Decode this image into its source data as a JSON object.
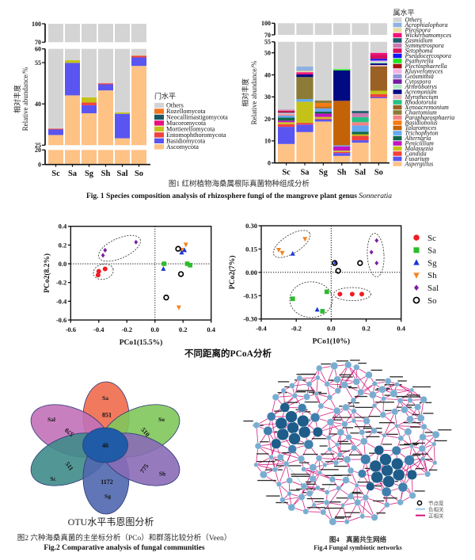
{
  "figure1": {
    "caption_cn": "图1  红树植物海桑属根际真菌物种组成分析",
    "caption_en": "Fig. 1  Species composition analysis of rhizosphere fungi of the mangrove plant genus ",
    "caption_en_genus": "Sonneratia"
  },
  "figure2": {
    "pcoa_title": "不同距离的PCoA分析",
    "venn_title": "OTU水平韦恩图分析",
    "caption_cn": "图2 六种海桑真菌的主坐标分析（PCo）和群落比较分析（Veen）",
    "caption_en": "Fig.2  Comparative analysis of fungal communities",
    "venn": {
      "core_otus": "46",
      "core_color": "#1f5ba6",
      "petals": [
        {
          "sample": "Sa",
          "unique_otus": "851",
          "color": "#ef6b4d"
        },
        {
          "sample": "So",
          "unique_otus": "510",
          "color": "#7fc65b"
        },
        {
          "sample": "Sal",
          "unique_otus": "570",
          "color": "#c271b9"
        },
        {
          "sample": "Sc",
          "unique_otus": "511",
          "color": "#3f8c89"
        },
        {
          "sample": "Sg",
          "unique_otus": "1172",
          "color": "#5067ae"
        },
        {
          "sample": "Sh",
          "unique_otus": "775",
          "color": "#8a6cb6"
        }
      ]
    }
  },
  "figure4": {
    "caption_cn": "图4　真菌共生网络",
    "caption_en": "Fig.4  Fungal symbiotic networks",
    "node_color_hub": "#1e5c8a",
    "node_color_mid": "#3f7fae",
    "node_color": "#79aed1",
    "legend": [
      {
        "label": "节点度",
        "kind": "node"
      },
      {
        "label": "负相关",
        "kind": "negative-edge",
        "color": "#9fcbec"
      },
      {
        "label": "正相关",
        "kind": "positive-edge",
        "color": "#d3147a"
      }
    ]
  },
  "chart_data": [
    {
      "type": "bar",
      "stacked": true,
      "title": "",
      "xlabel": "",
      "ylabel": "Relative abundance/%",
      "ylabel_cn": "相对丰度",
      "categories": [
        "Sc",
        "Sa",
        "Sg",
        "Sh",
        "Sal",
        "So"
      ],
      "ylim": [
        0,
        100
      ],
      "y_segments": [
        [
          0,
          20
        ],
        [
          25,
          60
        ],
        [
          70,
          100
        ]
      ],
      "yticks": [
        0,
        20,
        25,
        40,
        55,
        60,
        70,
        100
      ],
      "legend_title": "门水平",
      "legend_position": "right",
      "series": [
        {
          "name": "Ascomycota",
          "color": "#ffc285",
          "values": [
            28.7,
            43.1,
            36.6,
            44.9,
            27.5,
            53.8
          ]
        },
        {
          "name": "Basidiomycota",
          "color": "#5a55f0",
          "values": [
            2.0,
            11.8,
            2.9,
            2.2,
            8.9,
            3.1
          ]
        },
        {
          "name": "Entomophthoromycota",
          "color": "#f2403f",
          "values": [
            0.3,
            0,
            1.0,
            0.4,
            0,
            0.5
          ]
        },
        {
          "name": "Mortierellomycota",
          "color": "#c4c219",
          "values": [
            0,
            1.0,
            1.9,
            0,
            0.5,
            0
          ]
        },
        {
          "name": "Mucoromycota",
          "color": "#e8117e",
          "values": [
            0,
            0,
            0,
            0,
            0,
            0
          ]
        },
        {
          "name": "Neocallimastigomycota",
          "color": "#1b5566",
          "values": [
            0,
            0,
            0,
            0,
            0,
            0
          ]
        },
        {
          "name": "Rozellomycota",
          "color": "#f5731c",
          "values": [
            0,
            0,
            0,
            0,
            0,
            0.2
          ]
        },
        {
          "name": "Others",
          "color": "#d4d4d4",
          "values": [
            69.0,
            44.1,
            57.6,
            52.5,
            63.1,
            42.4
          ]
        }
      ]
    },
    {
      "type": "bar",
      "stacked": true,
      "title": "",
      "xlabel": "",
      "ylabel": "Relative abundance/%",
      "ylabel_cn": "相对丰度",
      "categories": [
        "Sc",
        "Sa",
        "Sg",
        "Sh",
        "Sal",
        "So"
      ],
      "ylim": [
        0,
        100
      ],
      "y_segments": [
        [
          0,
          55
        ],
        [
          70,
          100
        ]
      ],
      "yticks": [
        0,
        10,
        20,
        30,
        40,
        50,
        55,
        70,
        100
      ],
      "legend_title": "属水平",
      "legend_position": "right",
      "series": [
        {
          "name": "Aspergillus",
          "color": "#ffc285",
          "values": [
            8.6,
            14.0,
            18.8,
            3.2,
            9.2,
            29.4
          ]
        },
        {
          "name": "Fusarium",
          "color": "#5a55f0",
          "values": [
            7.8,
            3.4,
            0.9,
            1.3,
            1.1,
            0.5
          ]
        },
        {
          "name": "Candida",
          "color": "#f2403f",
          "values": [
            1.2,
            0.8,
            0.4,
            0.5,
            2.0,
            1.3
          ]
        },
        {
          "name": "Malassezia",
          "color": "#c4c219",
          "values": [
            0.9,
            9.6,
            0.8,
            0.6,
            0.7,
            1.6
          ]
        },
        {
          "name": "Penicillium",
          "color": "#c313c3",
          "values": [
            0.7,
            0,
            1.5,
            1.9,
            0,
            0
          ]
        },
        {
          "name": "Alternaria",
          "color": "#12664a",
          "values": [
            1.4,
            0,
            0.9,
            0,
            1.2,
            0
          ]
        },
        {
          "name": "Trichophyton",
          "color": "#63a9f2",
          "values": [
            0.9,
            1.2,
            1.5,
            0.5,
            2.8,
            0
          ]
        },
        {
          "name": "Talaromyces",
          "color": "#c46208",
          "values": [
            0,
            0,
            0.9,
            20.2,
            0,
            0
          ]
        },
        {
          "name": "Basidiobolus",
          "color": "#f57a0f",
          "values": [
            0,
            0,
            1.5,
            0,
            0,
            0
          ]
        },
        {
          "name": "Paraphaeosphaeria",
          "color": "#f58282",
          "values": [
            0.5,
            0,
            0,
            0,
            1.5,
            0
          ]
        },
        {
          "name": "Chaetomium",
          "color": "#8c7b36",
          "values": [
            0,
            10.0,
            1.2,
            0,
            0,
            0
          ]
        },
        {
          "name": "Xenoacremonium",
          "color": "#9b6124",
          "values": [
            0,
            0,
            0,
            0,
            0,
            11.0
          ]
        },
        {
          "name": "Rhodotorula",
          "color": "#22c283",
          "values": [
            0,
            0,
            0,
            0,
            2.3,
            0
          ]
        },
        {
          "name": "Myrothecium",
          "color": "#e6b4bd",
          "values": [
            0.5,
            0,
            0,
            0,
            0,
            0.7
          ]
        },
        {
          "name": "Acremonium",
          "color": "#000a82",
          "values": [
            0,
            1.2,
            0,
            13.8,
            0,
            0.7
          ]
        },
        {
          "name": "Arthrobotrys",
          "color": "#b4e6c5",
          "values": [
            0,
            0,
            0,
            0,
            0,
            0.8
          ]
        },
        {
          "name": "Cytospora",
          "color": "#741aa3",
          "values": [
            0,
            0,
            0,
            0,
            0,
            0
          ]
        },
        {
          "name": "Geosmithia",
          "color": "#9393d6",
          "values": [
            0.4,
            0,
            0,
            0,
            0,
            0
          ]
        },
        {
          "name": "Kluyveromyces",
          "color": "#f2b3e4",
          "values": [
            0,
            0,
            0,
            0,
            0,
            0.5
          ]
        },
        {
          "name": "Plectosphaerella",
          "color": "#a31212",
          "values": [
            0.4,
            0,
            0,
            0,
            0,
            0
          ]
        },
        {
          "name": "Psathyrella",
          "color": "#1ee61e",
          "values": [
            0,
            0,
            0,
            0.6,
            0,
            0
          ]
        },
        {
          "name": "Pseudocercospora",
          "color": "#1212f5",
          "values": [
            0,
            0,
            0,
            0,
            0,
            0.8
          ]
        },
        {
          "name": "Setophoma",
          "color": "#d3105f",
          "values": [
            0.4,
            0,
            0,
            0,
            0,
            1.7
          ]
        },
        {
          "name": "Symmetrospora",
          "color": "#c97ab2",
          "values": [
            0.5,
            0,
            0,
            0,
            1.8,
            0
          ]
        },
        {
          "name": "Zasmidium",
          "color": "#1b5b6c",
          "values": [
            0,
            0,
            0,
            0,
            1.0,
            0
          ]
        },
        {
          "name": "Wickerhamomyces",
          "color": "#f2117b",
          "values": [
            0,
            1.0,
            0,
            0,
            0,
            1.0
          ]
        },
        {
          "name": "Pleospora",
          "color": "#e8dea2",
          "values": [
            0,
            0.6,
            0,
            0,
            0,
            0
          ]
        },
        {
          "name": "Acrophialophora",
          "color": "#8fb1e2",
          "values": [
            0,
            2.0,
            0,
            0,
            0,
            0
          ]
        },
        {
          "name": "Others",
          "color": "#d4d4d4",
          "values": [
            75.8,
            56.2,
            71.6,
            57.4,
            76.4,
            50.0
          ]
        }
      ]
    },
    {
      "type": "scatter",
      "title": "",
      "xlabel": "PCo1(15.5%)",
      "ylabel": "PCo2(8.2%)",
      "xlim": [
        -0.6,
        0.4
      ],
      "ylim": [
        -0.6,
        0.4
      ],
      "xticks": [
        "-0.6",
        "-0.4",
        "-0.2",
        "0.0",
        "0.2",
        "0.4"
      ],
      "yticks": [
        "-0.6",
        "-0.4",
        "-0.2",
        "0.0",
        "0.2",
        "0.4"
      ],
      "grid": false,
      "reference_lines": [
        "x=0",
        "y=0"
      ],
      "clusters_circled": [
        "Sal",
        "Sc"
      ],
      "series": [
        {
          "name": "Sc",
          "marker": "circle",
          "color": "#ee1d23",
          "points": [
            [
              -0.4,
              -0.08
            ],
            [
              -0.405,
              -0.12
            ],
            [
              -0.355,
              -0.055
            ]
          ]
        },
        {
          "name": "Sa",
          "marker": "square",
          "color": "#2bbd2b",
          "points": [
            [
              0.065,
              0.0
            ],
            [
              0.23,
              0.0
            ],
            [
              0.25,
              -0.015
            ]
          ]
        },
        {
          "name": "Sh",
          "marker": "triangle-down",
          "color": "#f5821f",
          "points": [
            [
              0.22,
              0.205
            ],
            [
              0.19,
              0.15
            ],
            [
              0.17,
              -0.465
            ]
          ]
        },
        {
          "name": "Sg",
          "marker": "triangle-up",
          "color": "#1b35d8",
          "points": [
            [
              0.06,
              -0.055
            ],
            [
              0.19,
              0.12
            ],
            [
              0.21,
              0.145
            ]
          ]
        },
        {
          "name": "Sal",
          "marker": "diamond",
          "color": "#7a1fa2",
          "points": [
            [
              -0.37,
              0.09
            ],
            [
              -0.355,
              0.145
            ],
            [
              -0.135,
              0.23
            ]
          ]
        },
        {
          "name": "So",
          "marker": "open-circle",
          "color": "#000000",
          "points": [
            [
              0.165,
              0.16
            ],
            [
              0.185,
              -0.11
            ],
            [
              0.08,
              -0.36
            ]
          ]
        }
      ]
    },
    {
      "type": "scatter",
      "title": "",
      "xlabel": "PCo1(10%)",
      "ylabel": "PCo2(7%)",
      "xlim": [
        -0.4,
        0.4
      ],
      "ylim": [
        -0.3,
        0.3
      ],
      "xticks": [
        "-0.4",
        "-0.2",
        "0.0",
        "0.2",
        "0.4"
      ],
      "yticks": [
        "-0.30",
        "-0.15",
        "0.00",
        "0.15",
        "0.30"
      ],
      "grid": false,
      "reference_lines": [
        "x=0",
        "y=0"
      ],
      "legend_position": "right",
      "clusters_circled": [
        "Sh + one Sg",
        "Sal",
        "Sc",
        "Sa + one Sg"
      ],
      "series": [
        {
          "name": "Sc",
          "marker": "circle",
          "color": "#ee1d23",
          "points": [
            [
              0.05,
              -0.14
            ],
            [
              0.12,
              -0.14
            ],
            [
              0.175,
              -0.14
            ]
          ]
        },
        {
          "name": "Sa",
          "marker": "square",
          "color": "#2bbd2b",
          "points": [
            [
              -0.22,
              -0.17
            ],
            [
              -0.025,
              -0.125
            ],
            [
              -0.05,
              -0.25
            ]
          ]
        },
        {
          "name": "Sg",
          "marker": "triangle-up",
          "color": "#1b35d8",
          "points": [
            [
              -0.22,
              0.12
            ],
            [
              -0.08,
              -0.24
            ],
            [
              0.025,
              0.065
            ]
          ]
        },
        {
          "name": "Sh",
          "marker": "triangle-down",
          "color": "#f5821f",
          "points": [
            [
              -0.3,
              0.145
            ],
            [
              -0.28,
              0.125
            ],
            [
              -0.15,
              0.215
            ]
          ]
        },
        {
          "name": "Sal",
          "marker": "diamond",
          "color": "#7a1fa2",
          "points": [
            [
              0.26,
              0.205
            ],
            [
              0.23,
              0.13
            ],
            [
              0.26,
              0.06
            ]
          ]
        },
        {
          "name": "So",
          "marker": "open-circle",
          "color": "#000000",
          "points": [
            [
              0.02,
              0.06
            ],
            [
              0.04,
              0.01
            ],
            [
              0.165,
              0.06
            ]
          ]
        }
      ]
    }
  ]
}
